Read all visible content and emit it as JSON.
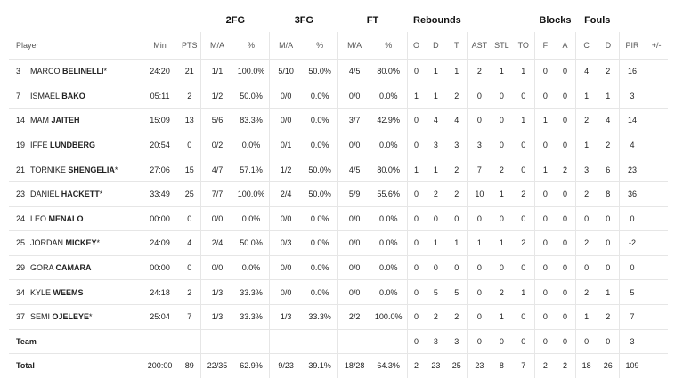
{
  "groups": {
    "fg2": "2FG",
    "fg3": "3FG",
    "ft": "FT",
    "rebounds": "Rebounds",
    "blocks": "Blocks",
    "fouls": "Fouls"
  },
  "columns": {
    "player": "Player",
    "min": "Min",
    "pts": "PTS",
    "fg2_ma": "M/A",
    "fg2_pct": "%",
    "fg3_ma": "M/A",
    "fg3_pct": "%",
    "ft_ma": "M/A",
    "ft_pct": "%",
    "reb_o": "O",
    "reb_d": "D",
    "reb_t": "T",
    "ast": "AST",
    "stl": "STL",
    "to": "TO",
    "blk_f": "F",
    "blk_a": "A",
    "foul_c": "C",
    "foul_d": "D",
    "pir": "PIR",
    "pm": "+/-"
  },
  "players": [
    {
      "num": "3",
      "first": "MARCO",
      "last": "BELINELLI",
      "mark": "*",
      "min": "24:20",
      "pts": "21",
      "fg2_ma": "1/1",
      "fg2_pct": "100.0%",
      "fg3_ma": "5/10",
      "fg3_pct": "50.0%",
      "ft_ma": "4/5",
      "ft_pct": "80.0%",
      "o": "0",
      "d": "1",
      "t": "1",
      "ast": "2",
      "stl": "1",
      "to": "1",
      "bf": "0",
      "ba": "0",
      "fc": "4",
      "fd": "2",
      "pir": "16",
      "pm": ""
    },
    {
      "num": "7",
      "first": "ISMAEL",
      "last": "BAKO",
      "mark": "",
      "min": "05:11",
      "pts": "2",
      "fg2_ma": "1/2",
      "fg2_pct": "50.0%",
      "fg3_ma": "0/0",
      "fg3_pct": "0.0%",
      "ft_ma": "0/0",
      "ft_pct": "0.0%",
      "o": "1",
      "d": "1",
      "t": "2",
      "ast": "0",
      "stl": "0",
      "to": "0",
      "bf": "0",
      "ba": "0",
      "fc": "1",
      "fd": "1",
      "pir": "3",
      "pm": ""
    },
    {
      "num": "14",
      "first": "MAM",
      "last": "JAITEH",
      "mark": "",
      "min": "15:09",
      "pts": "13",
      "fg2_ma": "5/6",
      "fg2_pct": "83.3%",
      "fg3_ma": "0/0",
      "fg3_pct": "0.0%",
      "ft_ma": "3/7",
      "ft_pct": "42.9%",
      "o": "0",
      "d": "4",
      "t": "4",
      "ast": "0",
      "stl": "0",
      "to": "1",
      "bf": "1",
      "ba": "0",
      "fc": "2",
      "fd": "4",
      "pir": "14",
      "pm": ""
    },
    {
      "num": "19",
      "first": "IFFE",
      "last": "LUNDBERG",
      "mark": "",
      "min": "20:54",
      "pts": "0",
      "fg2_ma": "0/2",
      "fg2_pct": "0.0%",
      "fg3_ma": "0/1",
      "fg3_pct": "0.0%",
      "ft_ma": "0/0",
      "ft_pct": "0.0%",
      "o": "0",
      "d": "3",
      "t": "3",
      "ast": "3",
      "stl": "0",
      "to": "0",
      "bf": "0",
      "ba": "0",
      "fc": "1",
      "fd": "2",
      "pir": "4",
      "pm": ""
    },
    {
      "num": "21",
      "first": "TORNIKE",
      "last": "SHENGELIA",
      "mark": "*",
      "min": "27:06",
      "pts": "15",
      "fg2_ma": "4/7",
      "fg2_pct": "57.1%",
      "fg3_ma": "1/2",
      "fg3_pct": "50.0%",
      "ft_ma": "4/5",
      "ft_pct": "80.0%",
      "o": "1",
      "d": "1",
      "t": "2",
      "ast": "7",
      "stl": "2",
      "to": "0",
      "bf": "1",
      "ba": "2",
      "fc": "3",
      "fd": "6",
      "pir": "23",
      "pm": ""
    },
    {
      "num": "23",
      "first": "DANIEL",
      "last": "HACKETT",
      "mark": "*",
      "min": "33:49",
      "pts": "25",
      "fg2_ma": "7/7",
      "fg2_pct": "100.0%",
      "fg3_ma": "2/4",
      "fg3_pct": "50.0%",
      "ft_ma": "5/9",
      "ft_pct": "55.6%",
      "o": "0",
      "d": "2",
      "t": "2",
      "ast": "10",
      "stl": "1",
      "to": "2",
      "bf": "0",
      "ba": "0",
      "fc": "2",
      "fd": "8",
      "pir": "36",
      "pm": ""
    },
    {
      "num": "24",
      "first": "LEO",
      "last": "MENALO",
      "mark": "",
      "min": "00:00",
      "pts": "0",
      "fg2_ma": "0/0",
      "fg2_pct": "0.0%",
      "fg3_ma": "0/0",
      "fg3_pct": "0.0%",
      "ft_ma": "0/0",
      "ft_pct": "0.0%",
      "o": "0",
      "d": "0",
      "t": "0",
      "ast": "0",
      "stl": "0",
      "to": "0",
      "bf": "0",
      "ba": "0",
      "fc": "0",
      "fd": "0",
      "pir": "0",
      "pm": ""
    },
    {
      "num": "25",
      "first": "JORDAN",
      "last": "MICKEY",
      "mark": "*",
      "min": "24:09",
      "pts": "4",
      "fg2_ma": "2/4",
      "fg2_pct": "50.0%",
      "fg3_ma": "0/3",
      "fg3_pct": "0.0%",
      "ft_ma": "0/0",
      "ft_pct": "0.0%",
      "o": "0",
      "d": "1",
      "t": "1",
      "ast": "1",
      "stl": "1",
      "to": "2",
      "bf": "0",
      "ba": "0",
      "fc": "2",
      "fd": "0",
      "pir": "-2",
      "pm": ""
    },
    {
      "num": "29",
      "first": "GORA",
      "last": "CAMARA",
      "mark": "",
      "min": "00:00",
      "pts": "0",
      "fg2_ma": "0/0",
      "fg2_pct": "0.0%",
      "fg3_ma": "0/0",
      "fg3_pct": "0.0%",
      "ft_ma": "0/0",
      "ft_pct": "0.0%",
      "o": "0",
      "d": "0",
      "t": "0",
      "ast": "0",
      "stl": "0",
      "to": "0",
      "bf": "0",
      "ba": "0",
      "fc": "0",
      "fd": "0",
      "pir": "0",
      "pm": ""
    },
    {
      "num": "34",
      "first": "KYLE",
      "last": "WEEMS",
      "mark": "",
      "min": "24:18",
      "pts": "2",
      "fg2_ma": "1/3",
      "fg2_pct": "33.3%",
      "fg3_ma": "0/0",
      "fg3_pct": "0.0%",
      "ft_ma": "0/0",
      "ft_pct": "0.0%",
      "o": "0",
      "d": "5",
      "t": "5",
      "ast": "0",
      "stl": "2",
      "to": "1",
      "bf": "0",
      "ba": "0",
      "fc": "2",
      "fd": "1",
      "pir": "5",
      "pm": ""
    },
    {
      "num": "37",
      "first": "SEMI",
      "last": "OJELEYE",
      "mark": "*",
      "min": "25:04",
      "pts": "7",
      "fg2_ma": "1/3",
      "fg2_pct": "33.3%",
      "fg3_ma": "1/3",
      "fg3_pct": "33.3%",
      "ft_ma": "2/2",
      "ft_pct": "100.0%",
      "o": "0",
      "d": "2",
      "t": "2",
      "ast": "0",
      "stl": "1",
      "to": "0",
      "bf": "0",
      "ba": "0",
      "fc": "1",
      "fd": "2",
      "pir": "7",
      "pm": ""
    }
  ],
  "team": {
    "label": "Team",
    "min": "",
    "pts": "",
    "fg2_ma": "",
    "fg2_pct": "",
    "fg3_ma": "",
    "fg3_pct": "",
    "ft_ma": "",
    "ft_pct": "",
    "o": "0",
    "d": "3",
    "t": "3",
    "ast": "0",
    "stl": "0",
    "to": "0",
    "bf": "0",
    "ba": "0",
    "fc": "0",
    "fd": "0",
    "pir": "3",
    "pm": ""
  },
  "total": {
    "label": "Total",
    "min": "200:00",
    "pts": "89",
    "fg2_ma": "22/35",
    "fg2_pct": "62.9%",
    "fg3_ma": "9/23",
    "fg3_pct": "39.1%",
    "ft_ma": "18/28",
    "ft_pct": "64.3%",
    "o": "2",
    "d": "23",
    "t": "25",
    "ast": "23",
    "stl": "8",
    "to": "7",
    "bf": "2",
    "ba": "2",
    "fc": "18",
    "fd": "26",
    "pir": "109",
    "pm": ""
  }
}
